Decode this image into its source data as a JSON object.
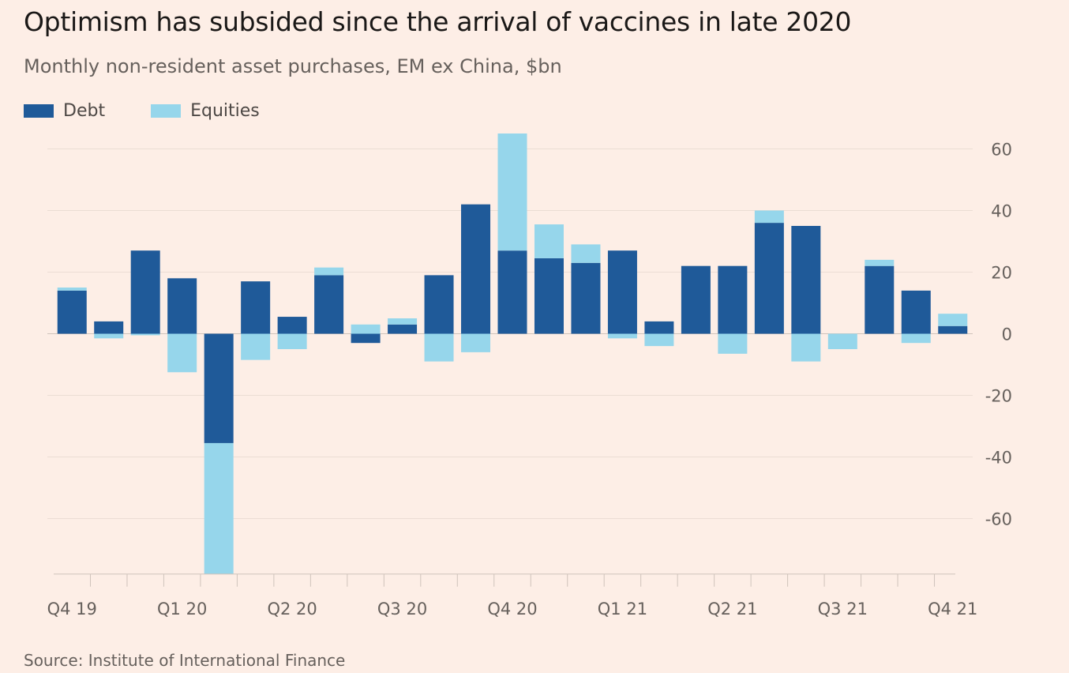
{
  "title": "Optimism has subsided since the arrival of vaccines in late 2020",
  "subtitle": "Monthly non-resident asset purchases, EM ex China, $bn",
  "source": "Source: Institute of International Finance",
  "legend": [
    {
      "name": "Debt",
      "color": "#1F5A99"
    },
    {
      "name": "Equities",
      "color": "#96D6EB"
    }
  ],
  "chart_data": {
    "type": "bar",
    "stacked": true,
    "x_tick_labels": [
      "Q4 19",
      "Q1 20",
      "Q2 20",
      "Q3 20",
      "Q4 20",
      "Q1 21",
      "Q2 21",
      "Q3 21",
      "Q4 21"
    ],
    "y_ticks": [
      60,
      40,
      20,
      0,
      -20,
      -40,
      -60
    ],
    "ylim": [
      -78,
      64
    ],
    "grid": true,
    "y_axis_side": "right",
    "legend_position": "top-left",
    "series": [
      {
        "name": "Debt",
        "color": "#1F5A99",
        "values": [
          14,
          4,
          27,
          18,
          -35.5,
          17,
          5.5,
          19,
          -3,
          3,
          19,
          42,
          27,
          24.5,
          23,
          27,
          4,
          22,
          22,
          36,
          35,
          0,
          22,
          14,
          2.5
        ]
      },
      {
        "name": "Equities",
        "color": "#96D6EB",
        "values": [
          1,
          -1.5,
          -0.5,
          -12.5,
          -44,
          -8.5,
          -5,
          2.5,
          3,
          2,
          -9,
          -6,
          38,
          11,
          6,
          -1.5,
          -4,
          0,
          -6.5,
          4,
          -9,
          -5,
          2,
          -3,
          4
        ]
      }
    ]
  }
}
